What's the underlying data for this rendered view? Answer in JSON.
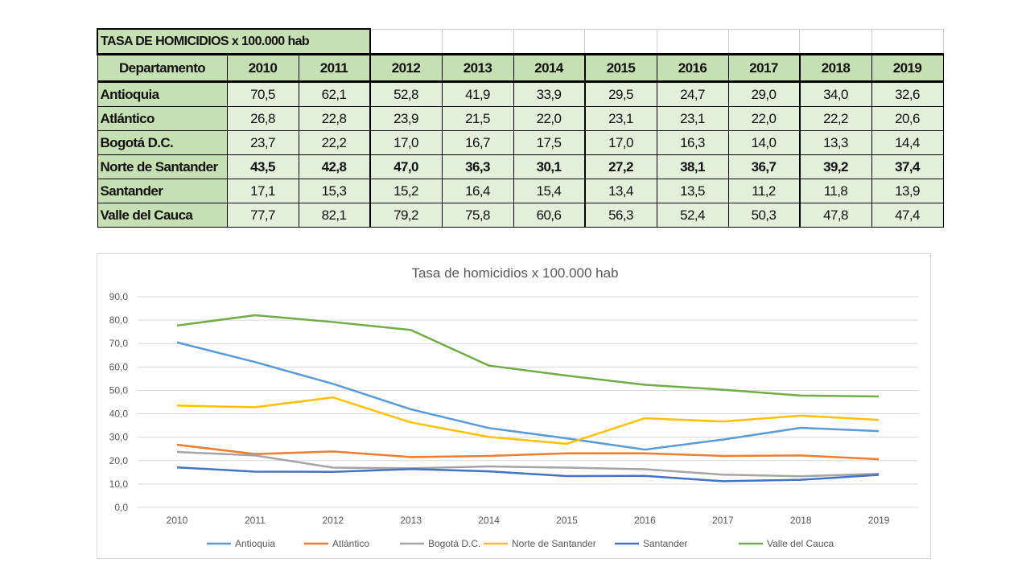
{
  "table": {
    "title": "TASA DE HOMICIDIOS x 100.000 hab",
    "header": [
      "Departamento",
      "2010",
      "2011",
      "2012",
      "2013",
      "2014",
      "2015",
      "2016",
      "2017",
      "2018",
      "2019"
    ],
    "rows": [
      {
        "name": "Antioquia",
        "values": [
          "70,5",
          "62,1",
          "52,8",
          "41,9",
          "33,9",
          "29,5",
          "24,7",
          "29,0",
          "34,0",
          "32,6"
        ]
      },
      {
        "name": "Atlántico",
        "values": [
          "26,8",
          "22,8",
          "23,9",
          "21,5",
          "22,0",
          "23,1",
          "23,1",
          "22,0",
          "22,2",
          "20,6"
        ]
      },
      {
        "name": "Bogotá D.C.",
        "values": [
          "23,7",
          "22,2",
          "17,0",
          "16,7",
          "17,5",
          "17,0",
          "16,3",
          "14,0",
          "13,3",
          "14,4"
        ]
      },
      {
        "name": "Norte de Santander",
        "values": [
          "43,5",
          "42,8",
          "47,0",
          "36,3",
          "30,1",
          "27,2",
          "38,1",
          "36,7",
          "39,2",
          "37,4"
        ]
      },
      {
        "name": "Santander",
        "values": [
          "17,1",
          "15,3",
          "15,2",
          "16,4",
          "15,4",
          "13,4",
          "13,5",
          "11,2",
          "11,8",
          "13,9"
        ]
      },
      {
        "name": "Valle del Cauca",
        "values": [
          "77,7",
          "82,1",
          "79,2",
          "75,8",
          "60,6",
          "56,3",
          "52,4",
          "50,3",
          "47,8",
          "47,4"
        ]
      }
    ]
  },
  "chart_data": {
    "type": "line",
    "title": "Tasa de homicidios x 100.000 hab",
    "x": [
      "2010",
      "2011",
      "2012",
      "2013",
      "2014",
      "2015",
      "2016",
      "2017",
      "2018",
      "2019"
    ],
    "ylim": [
      0,
      90
    ],
    "yticks": [
      "0,0",
      "10,0",
      "20,0",
      "30,0",
      "40,0",
      "50,0",
      "60,0",
      "70,0",
      "80,0",
      "90,0"
    ],
    "grid": true,
    "legend": "bottom",
    "series": [
      {
        "name": "Antioquia",
        "color": "#5B9BD5",
        "values": [
          70.5,
          62.1,
          52.8,
          41.9,
          33.9,
          29.5,
          24.7,
          29.0,
          34.0,
          32.6
        ]
      },
      {
        "name": "Atlántico",
        "color": "#ED7D31",
        "values": [
          26.8,
          22.8,
          23.9,
          21.5,
          22.0,
          23.1,
          23.1,
          22.0,
          22.2,
          20.6
        ]
      },
      {
        "name": "Bogotá D.C.",
        "color": "#A5A5A5",
        "values": [
          23.7,
          22.2,
          17.0,
          16.7,
          17.5,
          17.0,
          16.3,
          14.0,
          13.3,
          14.4
        ]
      },
      {
        "name": "Norte de Santander",
        "color": "#FFC000",
        "values": [
          43.5,
          42.8,
          47.0,
          36.3,
          30.1,
          27.2,
          38.1,
          36.7,
          39.2,
          37.4
        ]
      },
      {
        "name": "Santander",
        "color": "#4472C4",
        "values": [
          17.1,
          15.3,
          15.2,
          16.4,
          15.4,
          13.4,
          13.5,
          11.2,
          11.8,
          13.9
        ]
      },
      {
        "name": "Valle del Cauca",
        "color": "#70AD47",
        "values": [
          77.7,
          82.1,
          79.2,
          75.8,
          60.6,
          56.3,
          52.4,
          50.3,
          47.8,
          47.4
        ]
      }
    ]
  }
}
